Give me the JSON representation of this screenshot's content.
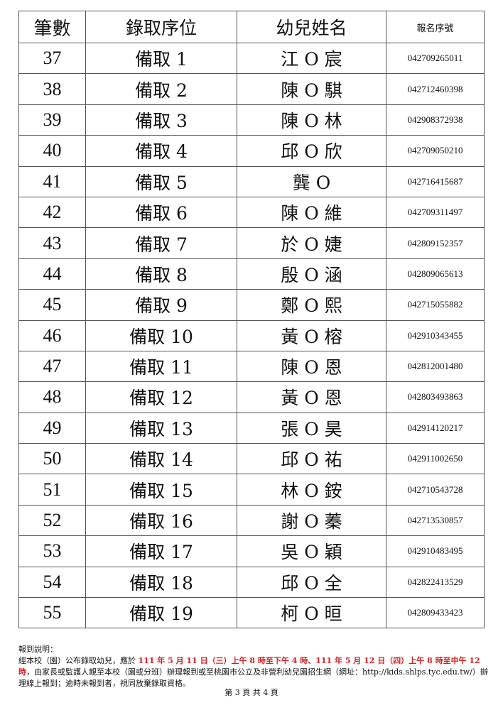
{
  "table": {
    "headers": [
      "筆數",
      "錄取序位",
      "幼兒姓名",
      "報名序號"
    ],
    "rows": [
      [
        "37",
        "備取 1",
        "江 O 宸",
        "042709265011"
      ],
      [
        "38",
        "備取 2",
        "陳 O 騏",
        "042712460398"
      ],
      [
        "39",
        "備取 3",
        "陳 O 林",
        "042908372938"
      ],
      [
        "40",
        "備取 4",
        "邱 O 欣",
        "042709050210"
      ],
      [
        "41",
        "備取 5",
        "龔 O",
        "042716415687"
      ],
      [
        "42",
        "備取 6",
        "陳 O 維",
        "042709311497"
      ],
      [
        "43",
        "備取 7",
        "於 O 婕",
        "042809152357"
      ],
      [
        "44",
        "備取 8",
        "殷 O 涵",
        "042809065613"
      ],
      [
        "45",
        "備取 9",
        "鄭 O 熙",
        "042715055882"
      ],
      [
        "46",
        "備取 10",
        "黃 O 榕",
        "042910343455"
      ],
      [
        "47",
        "備取 11",
        "陳 O 恩",
        "042812001480"
      ],
      [
        "48",
        "備取 12",
        "黃 O 恩",
        "042803493863"
      ],
      [
        "49",
        "備取 13",
        "張 O 昊",
        "042914120217"
      ],
      [
        "50",
        "備取 14",
        "邱 O 祐",
        "042911002650"
      ],
      [
        "51",
        "備取 15",
        "林 O 銨",
        "042710543728"
      ],
      [
        "52",
        "備取 16",
        "謝 O 蓁",
        "042713530857"
      ],
      [
        "53",
        "備取 17",
        "吳 O 穎",
        "042910483495"
      ],
      [
        "54",
        "備取 18",
        "邱 O 全",
        "042822413529"
      ],
      [
        "55",
        "備取 19",
        "柯 O 晅",
        "042809433423"
      ]
    ]
  },
  "notes": {
    "title": "報到說明：",
    "p1": "經本校（園）公布錄取幼兒，應於 ",
    "p1_red": "111 年 5 月 11 日（三）上午 8 時至下午 4 時、111 年 5 月 12 日（四）上午 8 時至中午 12 時",
    "p2": "，由家長或監護人親至本校（園或分班）辦理報到或至桃園市公立及非營利幼兒園招生網（網址：http://kids.shlps.tyc.edu.tw/）辦理線上報到；逾時未報到者，視同放棄錄取資格。",
    "accent_color": "#d42020"
  },
  "page": "第 3 頁 共 4 頁"
}
